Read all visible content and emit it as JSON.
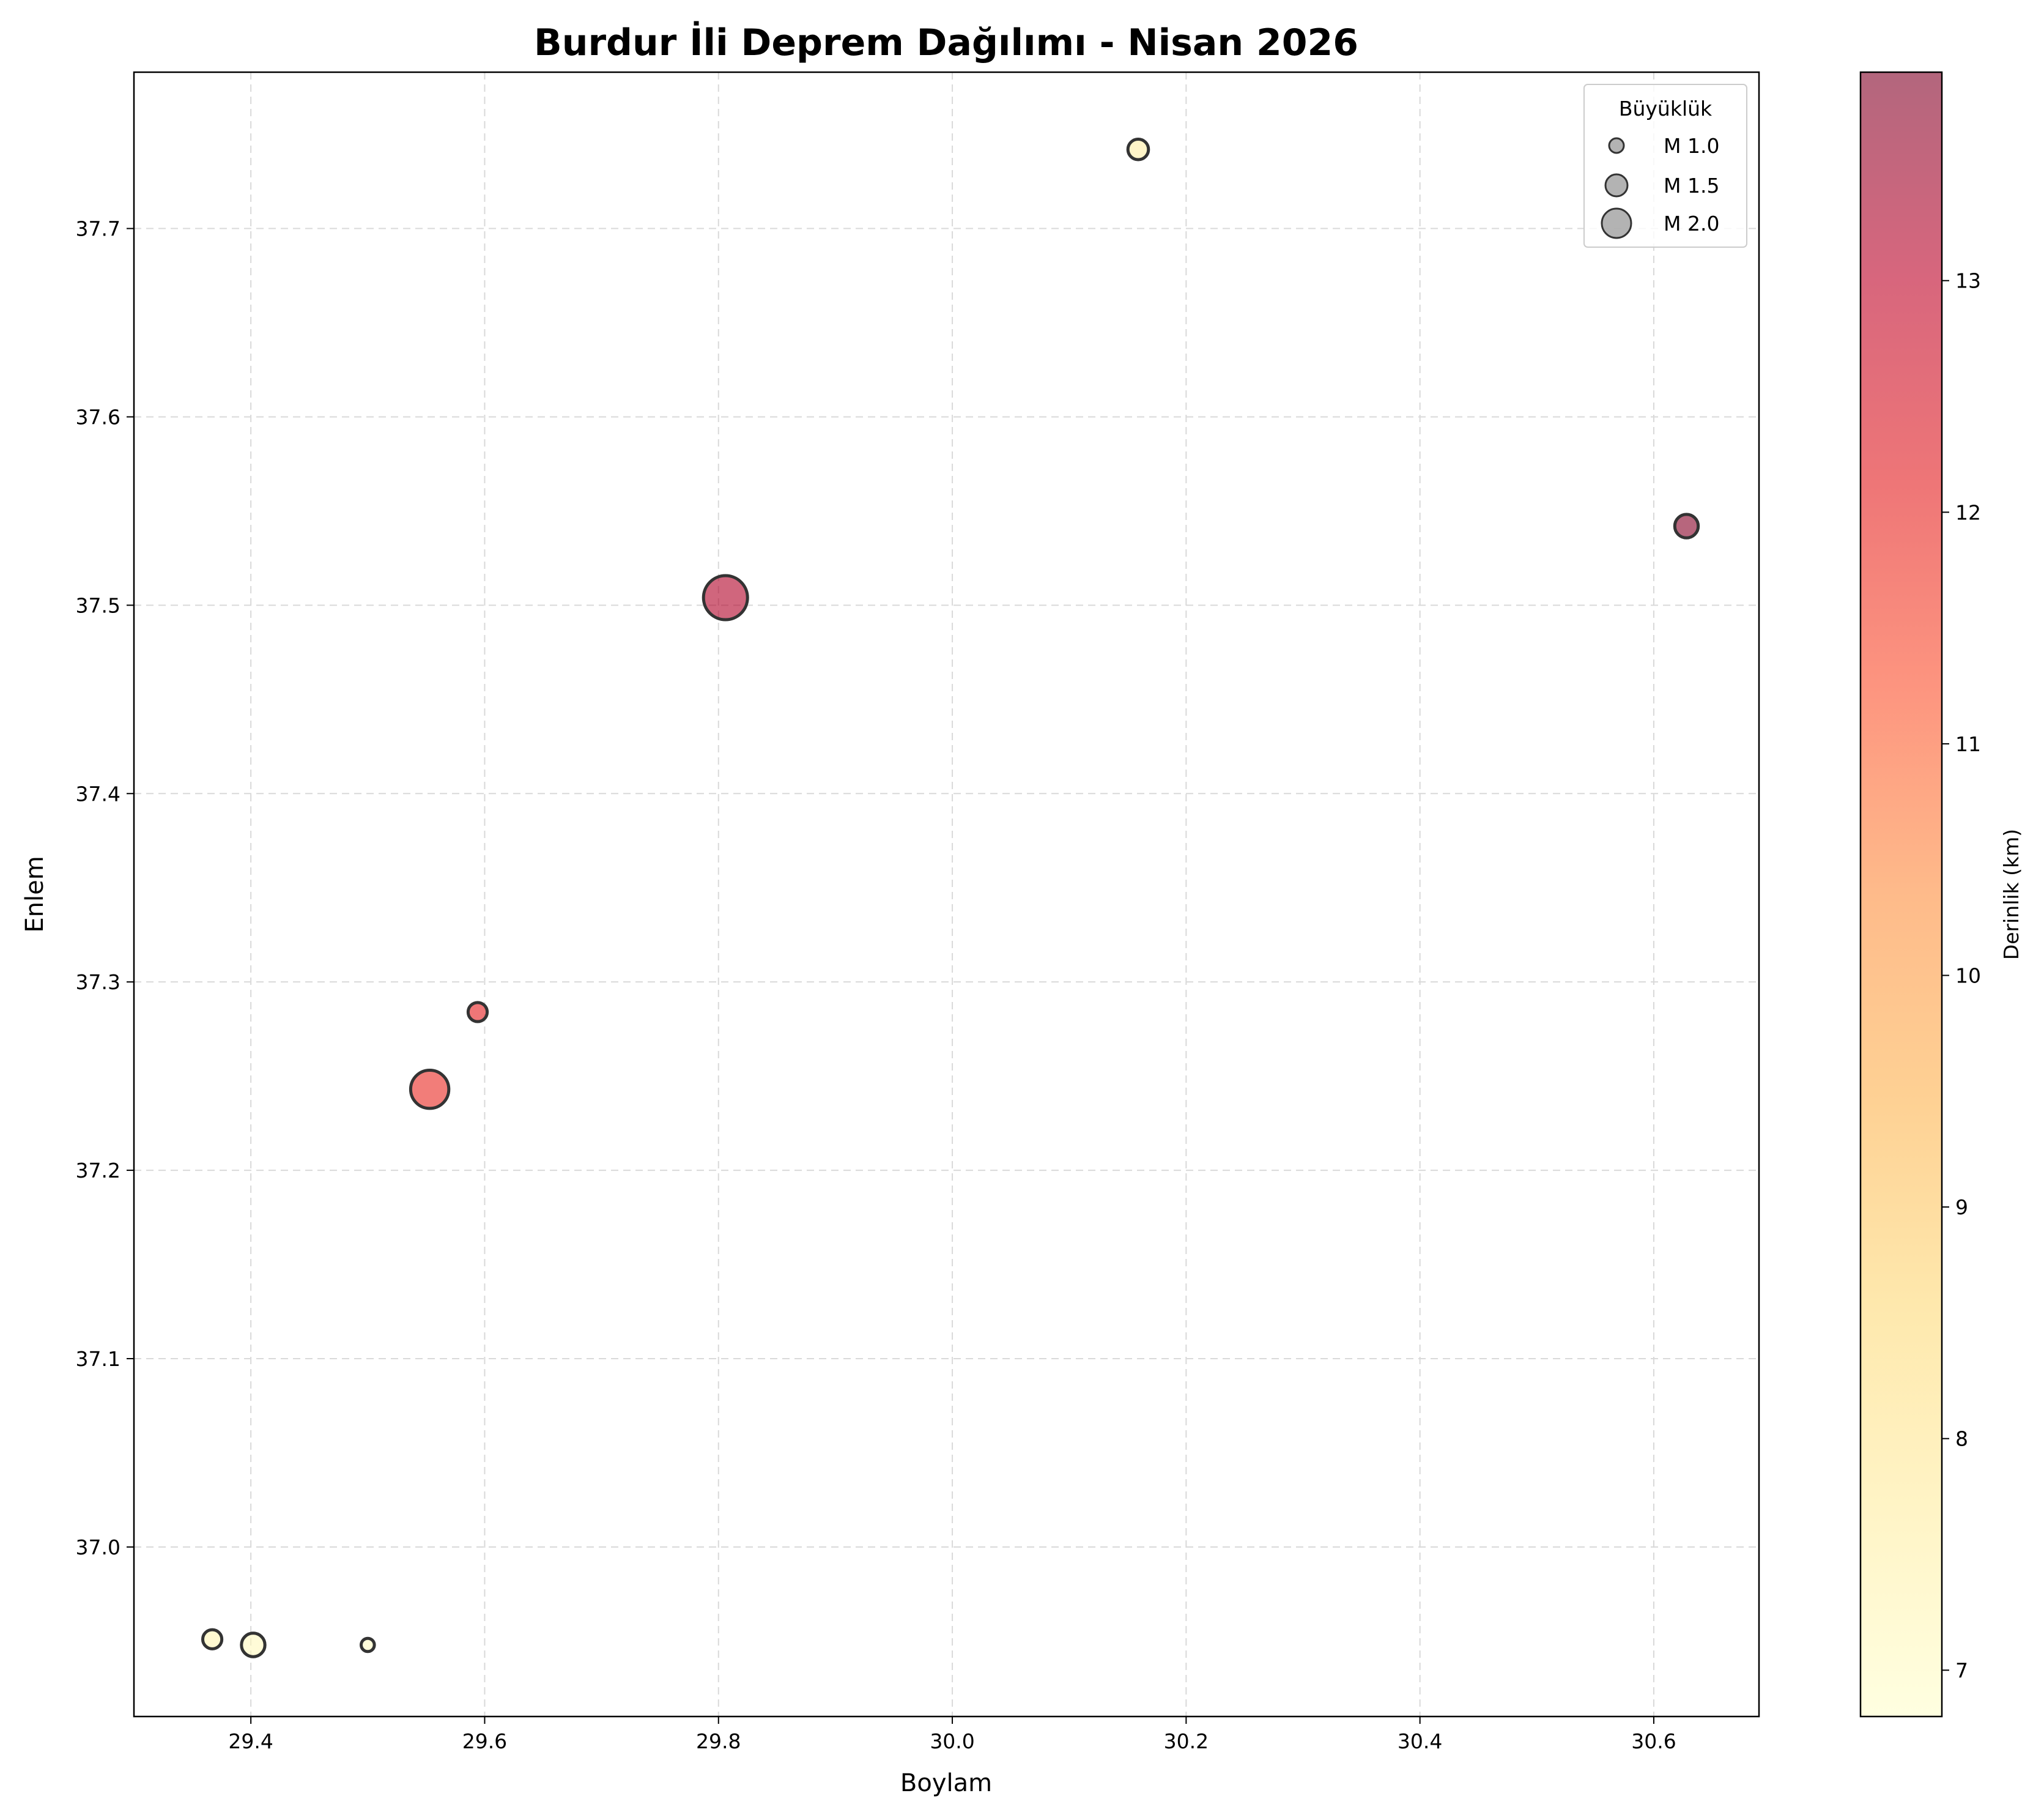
{
  "chart_data": {
    "type": "scatter",
    "title": "Burdur İli Deprem Dağılımı - Nisan 2026",
    "xlabel": "Boylam",
    "ylabel": "Enlem",
    "xlim": [
      29.3,
      30.69
    ],
    "ylim": [
      36.91,
      37.783
    ],
    "xticks": [
      "29.4",
      "29.6",
      "29.8",
      "30.0",
      "30.2",
      "30.4",
      "30.6"
    ],
    "yticks": [
      "37.0",
      "37.1",
      "37.2",
      "37.3",
      "37.4",
      "37.5",
      "37.6",
      "37.7"
    ],
    "grid": true,
    "points": [
      {
        "lon": 29.367,
        "lat": 36.951,
        "magnitude": 1.3,
        "depth": 7.3
      },
      {
        "lon": 29.402,
        "lat": 36.948,
        "magnitude": 1.6,
        "depth": 7.1
      },
      {
        "lon": 29.5,
        "lat": 36.948,
        "magnitude": 0.9,
        "depth": 7.0
      },
      {
        "lon": 29.553,
        "lat": 37.243,
        "magnitude": 2.6,
        "depth": 11.9
      },
      {
        "lon": 29.594,
        "lat": 37.284,
        "magnitude": 1.3,
        "depth": 12.1
      },
      {
        "lon": 29.806,
        "lat": 37.504,
        "magnitude": 3.0,
        "depth": 13.2
      },
      {
        "lon": 30.159,
        "lat": 37.742,
        "magnitude": 1.4,
        "depth": 7.6
      },
      {
        "lon": 30.628,
        "lat": 37.542,
        "magnitude": 1.6,
        "depth": 13.8
      }
    ],
    "legend": {
      "title": "Büyüklük",
      "position": "top-right",
      "entries": [
        {
          "label": "M 1.0",
          "magnitude": 1.0
        },
        {
          "label": "M 1.5",
          "magnitude": 1.5
        },
        {
          "label": "M 2.0",
          "magnitude": 2.0
        }
      ]
    },
    "colorbar": {
      "label": "Derinlik (km)",
      "range": [
        6.8,
        13.9
      ],
      "ticks": [
        "7",
        "8",
        "9",
        "10",
        "11",
        "12",
        "13"
      ],
      "colormap": "YlOrRd",
      "alpha": 0.6
    },
    "colors": {
      "marker_edge": "#333333",
      "legend_marker": "#999999",
      "grid": "#d9d9d9"
    }
  }
}
